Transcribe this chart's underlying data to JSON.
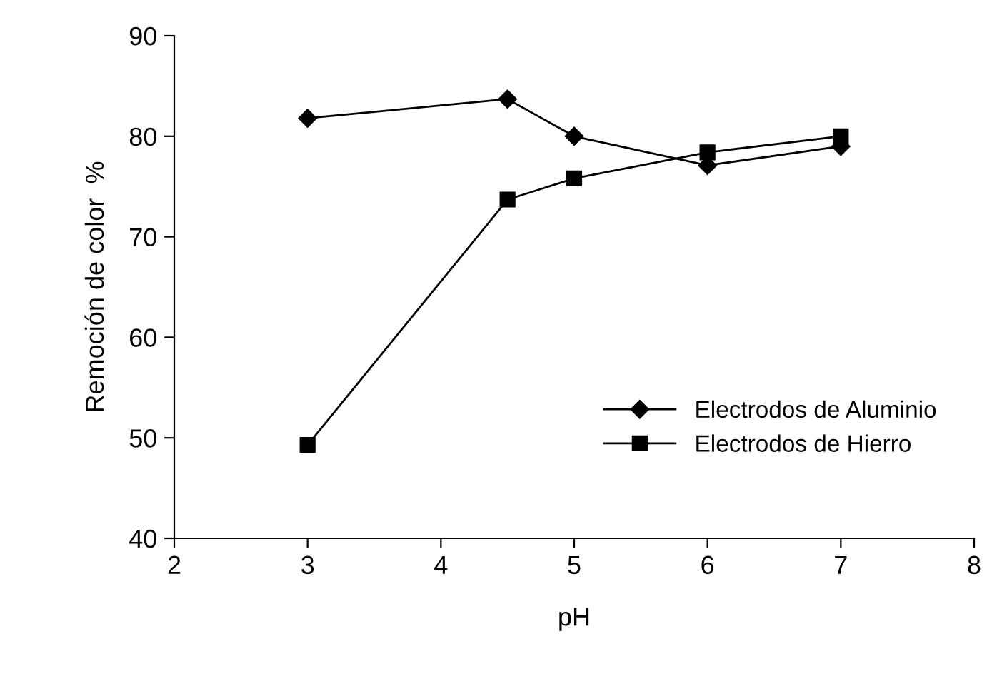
{
  "chart_data": {
    "type": "line",
    "xlabel": "pH",
    "ylabel": "Remoción de color  %",
    "x": [
      3,
      4.5,
      5,
      6,
      7
    ],
    "series": [
      {
        "name": "Electrodos de Aluminio",
        "color": "#000000",
        "marker": "diamond",
        "values": [
          81.8,
          83.7,
          80,
          77.1,
          79
        ]
      },
      {
        "name": "Electrodos de Hierro",
        "color": "#000000",
        "marker": "square",
        "values": [
          49.3,
          73.7,
          75.8,
          78.4,
          80
        ]
      }
    ],
    "xlim": [
      2,
      8
    ],
    "xticks": [
      2,
      3,
      4,
      5,
      6,
      7,
      8
    ],
    "ylim": [
      40,
      90
    ],
    "yticks": [
      40,
      50,
      60,
      70,
      80,
      90
    ],
    "grid": false,
    "legend": "bottom right",
    "line_style": "solid"
  }
}
